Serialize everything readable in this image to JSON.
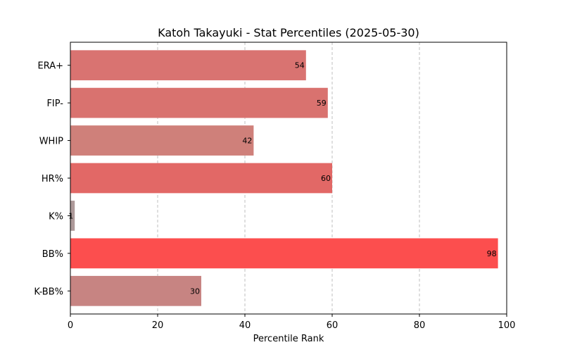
{
  "chart_data": {
    "type": "bar",
    "orientation": "horizontal",
    "title": "Katoh Takayuki - Stat Percentiles (2025-05-30)",
    "xlabel": "Percentile Rank",
    "ylabel": "",
    "xlim": [
      0,
      100
    ],
    "xticks": [
      0,
      20,
      40,
      60,
      80,
      100
    ],
    "grid": "x-dashed",
    "categories": [
      "ERA+",
      "FIP-",
      "WHIP",
      "HR%",
      "K%",
      "BB%",
      "K-BB%"
    ],
    "values": [
      54,
      59,
      42,
      60,
      1,
      98,
      30
    ],
    "colors": [
      "#d97371",
      "#d9726f",
      "#cf807a",
      "#e26866",
      "#ae9a9a",
      "#fc4e4e",
      "#c78482"
    ]
  }
}
